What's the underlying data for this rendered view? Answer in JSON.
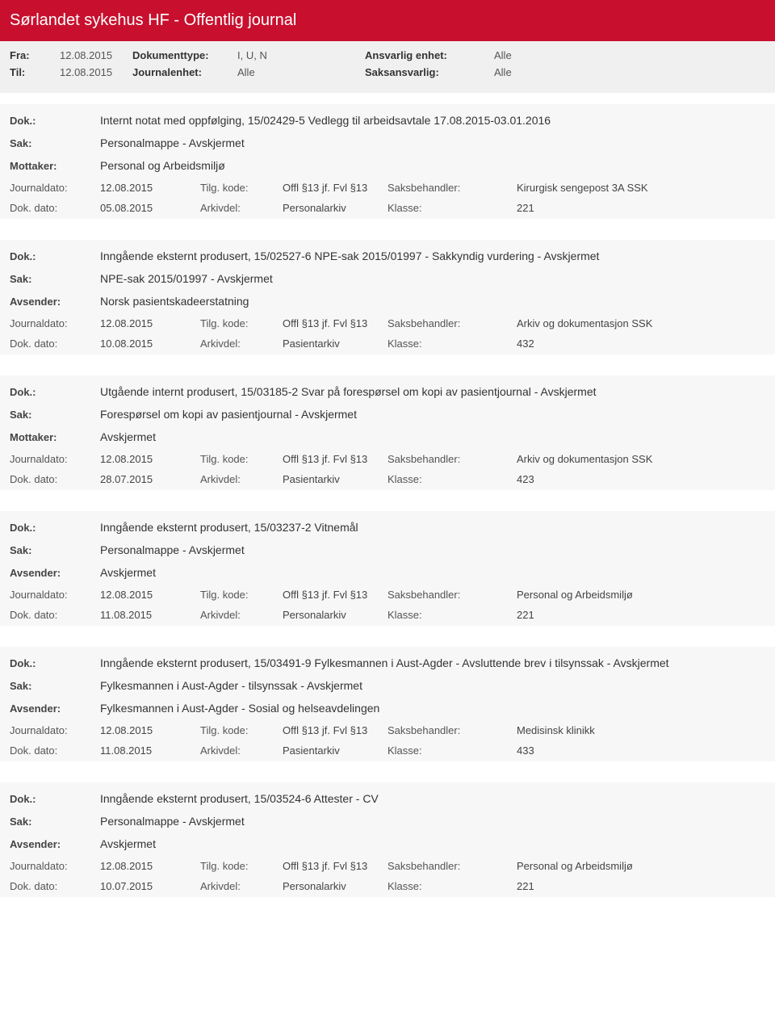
{
  "header": {
    "title": "Sørlandet sykehus HF - Offentlig journal",
    "fra_label": "Fra:",
    "fra_value": "12.08.2015",
    "til_label": "Til:",
    "til_value": "12.08.2015",
    "doktype_label": "Dokumenttype:",
    "doktype_value": "I, U, N",
    "journalenhet_label": "Journalenhet:",
    "journalenhet_value": "Alle",
    "ansvarlig_label": "Ansvarlig enhet:",
    "ansvarlig_value": "Alle",
    "saksansvarlig_label": "Saksansvarlig:",
    "saksansvarlig_value": "Alle"
  },
  "labels": {
    "dok": "Dok.:",
    "sak": "Sak:",
    "mottaker": "Mottaker:",
    "avsender": "Avsender:",
    "journaldato": "Journaldato:",
    "dokdato": "Dok. dato:",
    "tilgkode": "Tilg. kode:",
    "arkivdel": "Arkivdel:",
    "saksbehandler": "Saksbehandler:",
    "klasse": "Klasse:"
  },
  "entries": [
    {
      "dok": "Internt notat med oppfølging, 15/02429-5 Vedlegg til arbeidsavtale 17.08.2015-03.01.2016",
      "sak": "Personalmappe - Avskjermet",
      "party_label": "Mottaker:",
      "party_value": "Personal og Arbeidsmiljø",
      "journaldato": "12.08.2015",
      "tilgkode": "Offl §13 jf. Fvl §13",
      "saksbehandler": "Kirurgisk sengepost 3A SSK",
      "dokdato": "05.08.2015",
      "arkivdel": "Personalarkiv",
      "klasse": "221"
    },
    {
      "dok": "Inngående eksternt produsert, 15/02527-6 NPE-sak 2015/01997 - Sakkyndig vurdering - Avskjermet",
      "sak": "NPE-sak 2015/01997 - Avskjermet",
      "party_label": "Avsender:",
      "party_value": "Norsk pasientskadeerstatning",
      "journaldato": "12.08.2015",
      "tilgkode": "Offl §13 jf. Fvl §13",
      "saksbehandler": "Arkiv og dokumentasjon SSK",
      "dokdato": "10.08.2015",
      "arkivdel": "Pasientarkiv",
      "klasse": "432"
    },
    {
      "dok": "Utgående internt produsert, 15/03185-2 Svar på forespørsel om kopi av pasientjournal - Avskjermet",
      "sak": "Forespørsel om kopi av pasientjournal - Avskjermet",
      "party_label": "Mottaker:",
      "party_value": "Avskjermet",
      "journaldato": "12.08.2015",
      "tilgkode": "Offl §13 jf. Fvl §13",
      "saksbehandler": "Arkiv og dokumentasjon SSK",
      "dokdato": "28.07.2015",
      "arkivdel": "Pasientarkiv",
      "klasse": "423"
    },
    {
      "dok": "Inngående eksternt produsert, 15/03237-2 Vitnemål",
      "sak": "Personalmappe - Avskjermet",
      "party_label": "Avsender:",
      "party_value": "Avskjermet",
      "journaldato": "12.08.2015",
      "tilgkode": "Offl §13 jf. Fvl §13",
      "saksbehandler": "Personal og Arbeidsmiljø",
      "dokdato": "11.08.2015",
      "arkivdel": "Personalarkiv",
      "klasse": "221"
    },
    {
      "dok": "Inngående eksternt produsert, 15/03491-9 Fylkesmannen i Aust-Agder - Avsluttende brev i tilsynssak - Avskjermet",
      "sak": "Fylkesmannen i Aust-Agder - tilsynssak - Avskjermet",
      "party_label": "Avsender:",
      "party_value": "Fylkesmannen i Aust-Agder - Sosial og helseavdelingen",
      "journaldato": "12.08.2015",
      "tilgkode": "Offl §13 jf. Fvl §13",
      "saksbehandler": "Medisinsk klinikk",
      "dokdato": "11.08.2015",
      "arkivdel": "Pasientarkiv",
      "klasse": "433"
    },
    {
      "dok": "Inngående eksternt produsert, 15/03524-6 Attester  -  CV",
      "sak": "Personalmappe - Avskjermet",
      "party_label": "Avsender:",
      "party_value": "Avskjermet",
      "journaldato": "12.08.2015",
      "tilgkode": "Offl §13 jf. Fvl §13",
      "saksbehandler": "Personal og Arbeidsmiljø",
      "dokdato": "10.07.2015",
      "arkivdel": "Personalarkiv",
      "klasse": "221"
    }
  ]
}
